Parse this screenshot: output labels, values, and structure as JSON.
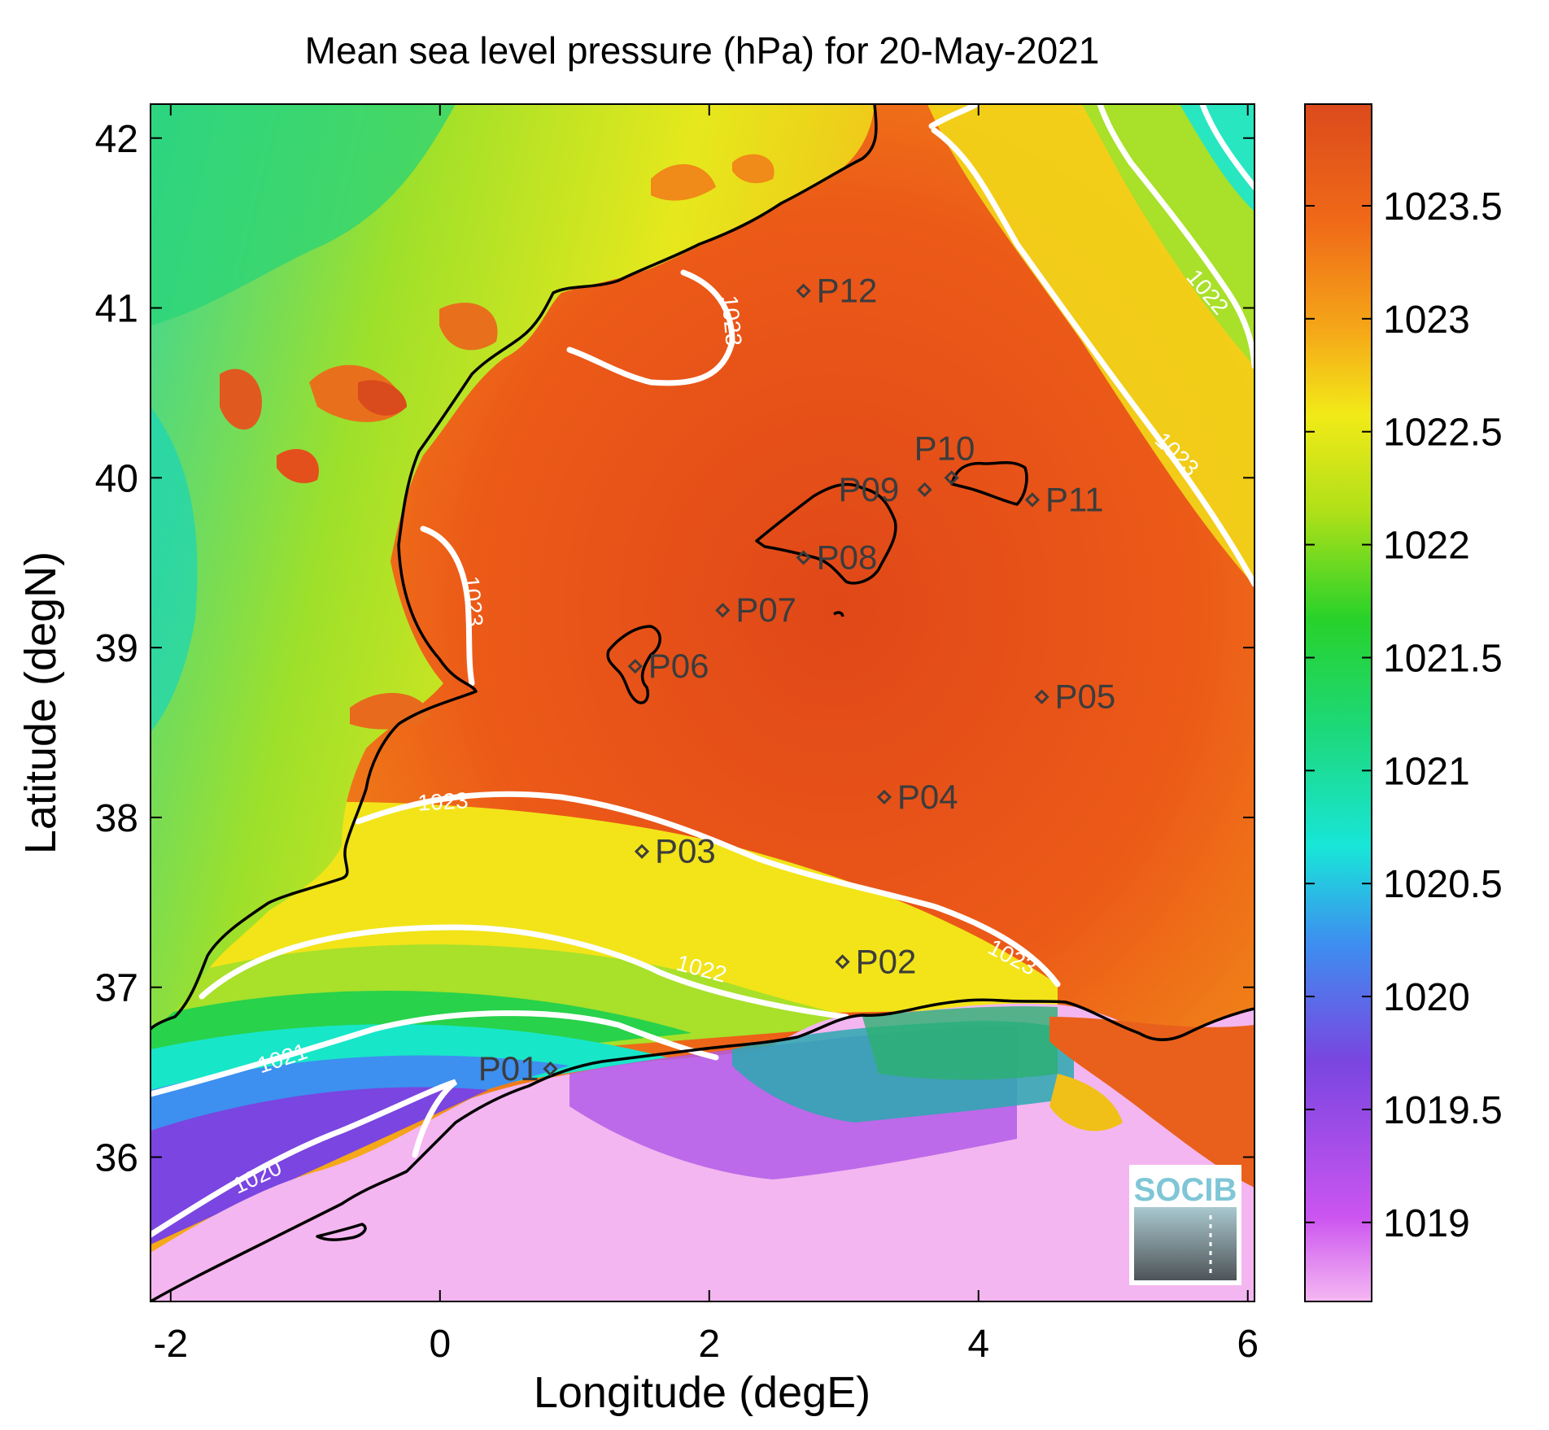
{
  "map": {
    "title": "Mean sea level pressure (hPa) for 20-May-2021",
    "xlabel": "Longitude (degE)",
    "ylabel": "Latitude (degN)",
    "xlim": [
      -2.15,
      6.05
    ],
    "ylim": [
      35.15,
      42.2
    ],
    "x_ticks": [
      -2,
      0,
      2,
      4,
      6
    ],
    "x_tick_labels": [
      "-2",
      "0",
      "2",
      "4",
      "6"
    ],
    "y_ticks": [
      36,
      37,
      38,
      39,
      40,
      41,
      42
    ],
    "y_tick_labels": [
      "36",
      "37",
      "38",
      "39",
      "40",
      "41",
      "42"
    ]
  },
  "colorbar": {
    "min": 1018.65,
    "max": 1023.95,
    "ticks": [
      1019,
      1019.5,
      1020,
      1020.5,
      1021,
      1021.5,
      1022,
      1022.5,
      1023,
      1023.5
    ],
    "tick_labels": [
      "1019",
      "1019.5",
      "1020",
      "1020.5",
      "1021",
      "1021.5",
      "1022",
      "1022.5",
      "1023",
      "1023.5"
    ],
    "colormap": [
      "#f5b8f2",
      "#cc55f0",
      "#7a45e0",
      "#3d8ff0",
      "#18e6d8",
      "#1dd878",
      "#28d22a",
      "#b0e018",
      "#f2ea18",
      "#f5a818",
      "#f06a18",
      "#dc4a1c"
    ]
  },
  "contours": [
    {
      "value": "1023",
      "labels": [
        "1023",
        "1023",
        "1023",
        "1023",
        "1023"
      ]
    },
    {
      "value": "1022",
      "labels": [
        "1022",
        "1022"
      ]
    },
    {
      "value": "1021",
      "labels": [
        "1021"
      ]
    },
    {
      "value": "1020",
      "labels": [
        "1020"
      ]
    }
  ],
  "stations": [
    {
      "name": "P01",
      "lon": 0.82,
      "lat": 36.52
    },
    {
      "name": "P02",
      "lon": 2.99,
      "lat": 37.15
    },
    {
      "name": "P03",
      "lon": 1.5,
      "lat": 37.8
    },
    {
      "name": "P04",
      "lon": 3.3,
      "lat": 38.12
    },
    {
      "name": "P05",
      "lon": 4.47,
      "lat": 38.71
    },
    {
      "name": "P06",
      "lon": 1.45,
      "lat": 38.89
    },
    {
      "name": "P07",
      "lon": 2.1,
      "lat": 39.22
    },
    {
      "name": "P08",
      "lon": 2.7,
      "lat": 39.53
    },
    {
      "name": "P09",
      "lon": 3.6,
      "lat": 39.93
    },
    {
      "name": "P10",
      "lon": 3.8,
      "lat": 40.0
    },
    {
      "name": "P11",
      "lon": 4.4,
      "lat": 39.87
    },
    {
      "name": "P12",
      "lon": 2.7,
      "lat": 41.1
    }
  ],
  "colors": {
    "coastline": "#000000",
    "contour": "#ffffff",
    "station": "#3c3c3c"
  },
  "logo": {
    "text": "SOCIB"
  }
}
